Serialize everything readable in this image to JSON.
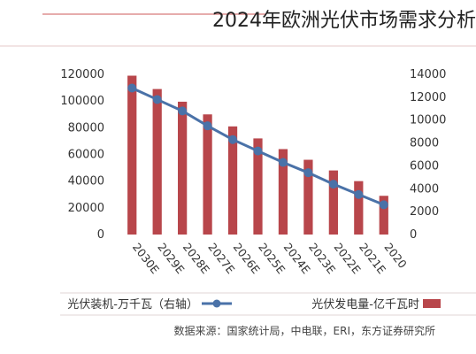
{
  "page": {
    "title": "2024年欧洲光伏市场需求分析",
    "source": "数据来源：国家统计局，中电联，ERI，东方证券研究所"
  },
  "chart_data": {
    "type": "bar",
    "categories": [
      "2030E",
      "2029E",
      "2028E",
      "2027E",
      "2026E",
      "2025E",
      "2024E",
      "2023E",
      "2022E",
      "2021E",
      "2020"
    ],
    "series": [
      {
        "name": "光伏发电量-亿千瓦时",
        "type": "bar",
        "axis": "left",
        "color": "#b8464b",
        "values": [
          119000,
          109000,
          99500,
          90000,
          81000,
          72000,
          64000,
          56000,
          48000,
          40000,
          29000
        ]
      },
      {
        "name": "光伏装机-万千瓦（右轴）",
        "type": "line",
        "axis": "right",
        "color": "#4a72a8",
        "values": [
          12800,
          11800,
          10800,
          9500,
          8300,
          7300,
          6300,
          5400,
          4400,
          3500,
          2600
        ]
      }
    ],
    "y_left": {
      "min": 0,
      "max": 120000,
      "ticks": [
        "0",
        "20000",
        "40000",
        "60000",
        "80000",
        "100000",
        "120000"
      ]
    },
    "y_right": {
      "min": 0,
      "max": 14000,
      "ticks": [
        "0",
        "2000",
        "4000",
        "6000",
        "8000",
        "10000",
        "12000",
        "14000"
      ]
    },
    "grid": false,
    "legend_position": "bottom"
  }
}
